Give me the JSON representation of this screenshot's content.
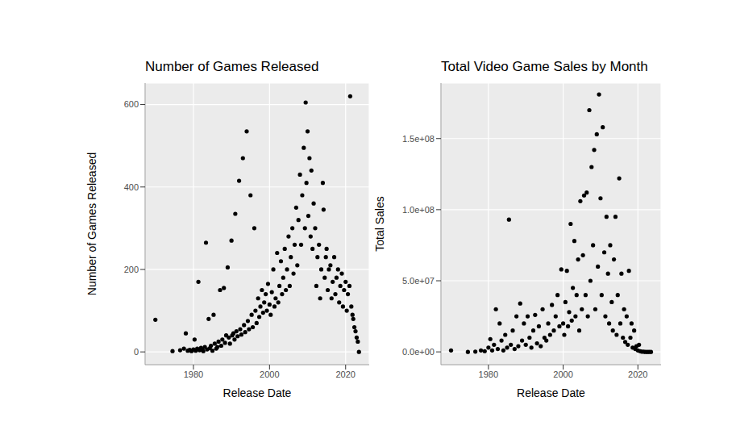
{
  "chart_data": [
    {
      "type": "scatter",
      "title": "Number of Games Released",
      "x_label": "Release Date",
      "y_label": "Number of Games Released",
      "color": "#000000",
      "marker": "circle",
      "grid": true,
      "xlim": [
        1967.3,
        2026.2
      ],
      "xticks": [
        1980,
        2000,
        2020
      ],
      "ylim": [
        -31,
        652
      ],
      "yticks": [
        0,
        200,
        400,
        600
      ],
      "x": [
        1970.0,
        1974.5,
        1976.5,
        1977.5,
        1978.0,
        1978.5,
        1979.0,
        1979.5,
        1980.0,
        1980.3,
        1980.6,
        1981.0,
        1981.3,
        1981.6,
        1982.0,
        1982.3,
        1982.6,
        1983.0,
        1983.3,
        1983.6,
        1984.0,
        1984.3,
        1984.6,
        1985.0,
        1985.3,
        1985.6,
        1986.0,
        1986.3,
        1986.6,
        1987.0,
        1987.3,
        1987.6,
        1988.0,
        1988.3,
        1988.6,
        1989.0,
        1989.3,
        1989.6,
        1990.0,
        1990.2,
        1990.5,
        1990.8,
        1991.0,
        1991.3,
        1991.6,
        1992.0,
        1992.3,
        1992.6,
        1993.0,
        1993.3,
        1993.6,
        1994.0,
        1994.3,
        1994.6,
        1995.0,
        1995.3,
        1995.6,
        1996.0,
        1996.3,
        1996.6,
        1997.0,
        1997.3,
        1997.6,
        1998.0,
        1998.3,
        1998.6,
        1999.0,
        1999.3,
        1999.6,
        2000.0,
        2000.3,
        2000.6,
        2001.0,
        2001.3,
        2001.6,
        2002.0,
        2002.3,
        2002.6,
        2003.0,
        2003.3,
        2003.6,
        2004.0,
        2004.3,
        2004.6,
        2005.0,
        2005.3,
        2005.6,
        2006.0,
        2006.3,
        2006.6,
        2007.0,
        2007.3,
        2007.6,
        2008.0,
        2008.3,
        2008.6,
        2009.0,
        2009.3,
        2009.5,
        2009.7,
        2010.0,
        2010.2,
        2010.5,
        2010.8,
        2011.0,
        2011.3,
        2011.6,
        2012.0,
        2012.3,
        2012.6,
        2013.0,
        2013.3,
        2013.6,
        2014.0,
        2014.2,
        2014.5,
        2014.8,
        2015.0,
        2015.3,
        2015.6,
        2016.0,
        2016.3,
        2016.6,
        2017.0,
        2017.3,
        2017.6,
        2018.0,
        2018.3,
        2018.6,
        2019.0,
        2019.3,
        2019.6,
        2020.0,
        2020.3,
        2020.6,
        2021.0,
        2021.2,
        2021.5,
        2021.8,
        2022.0,
        2022.3,
        2022.6,
        2022.9,
        2023.2,
        2023.5
      ],
      "values": [
        78,
        2,
        4,
        8,
        45,
        3,
        5,
        2,
        6,
        30,
        3,
        8,
        170,
        4,
        10,
        5,
        2,
        12,
        265,
        6,
        80,
        9,
        15,
        3,
        90,
        20,
        8,
        12,
        25,
        150,
        15,
        30,
        155,
        22,
        40,
        205,
        35,
        20,
        270,
        40,
        45,
        30,
        335,
        50,
        38,
        415,
        55,
        42,
        470,
        65,
        48,
        535,
        75,
        55,
        380,
        90,
        60,
        300,
        100,
        70,
        130,
        85,
        110,
        150,
        95,
        120,
        140,
        100,
        165,
        115,
        90,
        145,
        200,
        110,
        130,
        240,
        120,
        160,
        220,
        140,
        180,
        250,
        150,
        200,
        280,
        160,
        230,
        300,
        190,
        260,
        350,
        210,
        320,
        430,
        260,
        380,
        495,
        300,
        605,
        410,
        535,
        330,
        470,
        280,
        440,
        250,
        360,
        300,
        160,
        230,
        260,
        130,
        200,
        410,
        345,
        180,
        230,
        250,
        150,
        200,
        210,
        130,
        170,
        230,
        140,
        180,
        200,
        120,
        160,
        190,
        110,
        150,
        170,
        100,
        140,
        160,
        620,
        110,
        90,
        80,
        60,
        50,
        35,
        25,
        0
      ]
    },
    {
      "type": "scatter",
      "title": "Total Video Game Sales by Month",
      "x_label": "Release Date",
      "y_label": "Total Sales",
      "color": "#000000",
      "marker": "circle",
      "grid": true,
      "xlim": [
        1967.3,
        2026.2
      ],
      "xticks": [
        1980,
        2000,
        2020
      ],
      "ylim": [
        -9000000,
        189000000
      ],
      "yticks": [
        {
          "value": 0,
          "label": "0.0e+00"
        },
        {
          "value": 50000000,
          "label": "5.0e+07"
        },
        {
          "value": 100000000,
          "label": "1.0e+08"
        },
        {
          "value": 150000000,
          "label": "1.5e+08"
        }
      ],
      "x": [
        1970.0,
        1974.5,
        1976.5,
        1978.0,
        1979.0,
        1980.0,
        1980.5,
        1981.0,
        1981.5,
        1982.0,
        1982.5,
        1983.0,
        1983.5,
        1984.0,
        1984.5,
        1985.0,
        1985.5,
        1986.0,
        1986.5,
        1987.0,
        1987.5,
        1988.0,
        1988.5,
        1989.0,
        1989.5,
        1990.0,
        1990.5,
        1991.0,
        1991.5,
        1992.0,
        1992.5,
        1993.0,
        1993.5,
        1994.0,
        1994.5,
        1995.0,
        1995.5,
        1996.0,
        1996.5,
        1997.0,
        1997.5,
        1998.0,
        1998.5,
        1999.0,
        1999.5,
        2000.0,
        2000.3,
        2000.6,
        2001.0,
        2001.3,
        2001.6,
        2002.0,
        2002.3,
        2002.6,
        2003.0,
        2003.3,
        2003.6,
        2004.0,
        2004.3,
        2004.6,
        2005.0,
        2005.3,
        2005.6,
        2006.0,
        2006.3,
        2006.6,
        2007.0,
        2007.3,
        2007.6,
        2008.0,
        2008.3,
        2008.6,
        2009.0,
        2009.3,
        2009.6,
        2010.0,
        2010.3,
        2010.6,
        2011.0,
        2011.3,
        2011.6,
        2012.0,
        2012.3,
        2012.6,
        2013.0,
        2013.3,
        2013.6,
        2014.0,
        2014.3,
        2014.6,
        2015.0,
        2015.3,
        2015.6,
        2016.0,
        2016.3,
        2016.6,
        2017.0,
        2017.3,
        2017.6,
        2018.0,
        2018.3,
        2018.6,
        2019.0,
        2019.3,
        2019.6,
        2020.0,
        2020.3,
        2020.6,
        2021.0,
        2021.5,
        2022.0,
        2022.5,
        2023.0,
        2023.5
      ],
      "values": [
        1000000.0,
        0,
        200000.0,
        1000000.0,
        500000.0,
        3000000.0,
        9000000.0,
        1000000.0,
        5000000.0,
        30000000.0,
        2000000.0,
        20000000.0,
        8000000.0,
        1000000.0,
        12000000.0,
        3000000.0,
        93000000.0,
        5000000.0,
        15000000.0,
        2000000.0,
        25000000.0,
        4000000.0,
        34000000.0,
        8000000.0,
        20000000.0,
        5000000.0,
        25000000.0,
        10000000.0,
        3000000.0,
        15000000.0,
        26000000.0,
        6000000.0,
        18000000.0,
        4000000.0,
        30000000.0,
        10000000.0,
        8000000.0,
        20000000.0,
        12000000.0,
        33000000.0,
        15000000.0,
        25000000.0,
        40000000.0,
        18000000.0,
        58000000.0,
        20000000.0,
        12000000.0,
        35000000.0,
        57000000.0,
        18000000.0,
        28000000.0,
        90000000.0,
        22000000.0,
        45000000.0,
        78000000.0,
        25000000.0,
        40000000.0,
        65000000.0,
        15000000.0,
        106000000.0,
        30000000.0,
        68000000.0,
        110000000.0,
        40000000.0,
        112000000.0,
        25000000.0,
        170000000.0,
        50000000.0,
        130000000.0,
        75000000.0,
        142000000.0,
        30000000.0,
        153000000.0,
        60000000.0,
        181000000.0,
        108000000.0,
        40000000.0,
        158000000.0,
        70000000.0,
        25000000.0,
        95000000.0,
        55000000.0,
        20000000.0,
        75000000.0,
        35000000.0,
        15000000.0,
        65000000.0,
        95000000.0,
        12000000.0,
        40000000.0,
        122000000.0,
        20000000.0,
        55000000.0,
        10000000.0,
        30000000.0,
        7000000.0,
        25000000.0,
        5000000.0,
        57000000.0,
        10000000.0,
        20000000.0,
        3000000.0,
        15000000.0,
        2000000.0,
        4000000.0,
        1000000.0,
        5000000.0,
        500000.0,
        200000.0,
        100000.0,
        0,
        0,
        0,
        0
      ]
    }
  ]
}
